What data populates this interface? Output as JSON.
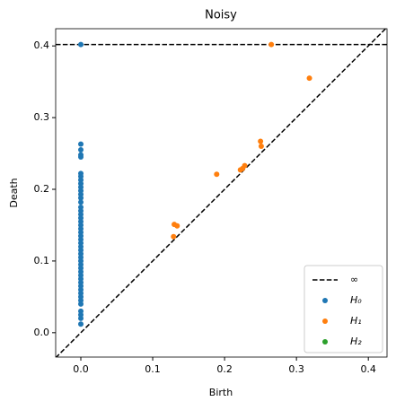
{
  "chart_data": {
    "type": "scatter",
    "title": "Noisy",
    "x_label": "Birth",
    "y_label": "Death",
    "xlim": [
      -0.035,
      0.426
    ],
    "ylim": [
      -0.034,
      0.424
    ],
    "xticks": [
      {
        "value": 0,
        "label": "0.0"
      },
      0.1,
      0.2,
      0.3,
      0.4
    ],
    "yticks": [
      {
        "value": 0,
        "label": "0.0"
      },
      0.1,
      0.2,
      0.3,
      0.4
    ],
    "infinity_line": {
      "label": "∞",
      "value": 0.402
    },
    "legend": "lower right",
    "series": [
      {
        "name": "H₀",
        "color": "#1f77b4",
        "x": [
          0,
          0,
          0,
          0,
          0,
          0,
          0,
          0,
          0,
          0,
          0,
          0,
          0,
          0,
          0,
          0,
          0,
          0,
          0,
          0,
          0,
          0,
          0,
          0,
          0,
          0,
          0,
          0,
          0,
          0,
          0,
          0,
          0,
          0,
          0,
          0,
          0,
          0,
          0,
          0,
          0,
          0,
          0,
          0,
          0,
          0
        ],
        "values": [
          0.402,
          0.263,
          0.255,
          0.248,
          0.245,
          0.222,
          0.218,
          0.213,
          0.208,
          0.203,
          0.198,
          0.193,
          0.188,
          0.182,
          0.175,
          0.17,
          0.165,
          0.16,
          0.155,
          0.15,
          0.145,
          0.14,
          0.135,
          0.13,
          0.125,
          0.12,
          0.115,
          0.11,
          0.105,
          0.1,
          0.095,
          0.09,
          0.085,
          0.08,
          0.075,
          0.07,
          0.065,
          0.06,
          0.055,
          0.05,
          0.045,
          0.04,
          0.03,
          0.025,
          0.02,
          0.012
        ]
      },
      {
        "name": "H₁",
        "color": "#ff7f0e",
        "x": [
          0.265,
          0.318,
          0.25,
          0.251,
          0.189,
          0.228,
          0.225,
          0.222,
          0.13,
          0.134,
          0.129
        ],
        "values": [
          0.402,
          0.355,
          0.267,
          0.26,
          0.221,
          0.233,
          0.229,
          0.227,
          0.151,
          0.149,
          0.134
        ]
      },
      {
        "name": "H₂",
        "color": "#2ca02c",
        "x": [],
        "values": []
      }
    ]
  }
}
